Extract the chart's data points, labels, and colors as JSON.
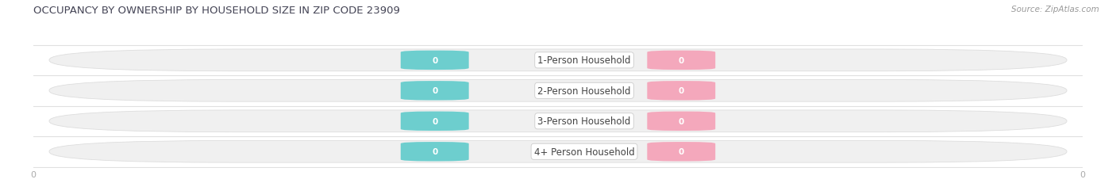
{
  "title": "OCCUPANCY BY OWNERSHIP BY HOUSEHOLD SIZE IN ZIP CODE 23909",
  "source": "Source: ZipAtlas.com",
  "categories": [
    "1-Person Household",
    "2-Person Household",
    "3-Person Household",
    "4+ Person Household"
  ],
  "owner_values": [
    0,
    0,
    0,
    0
  ],
  "renter_values": [
    0,
    0,
    0,
    0
  ],
  "owner_color": "#6DCECE",
  "renter_color": "#F4A8BC",
  "bar_bg_color": "#F0F0F0",
  "bar_bg_edge_color": "#DDDDDD",
  "row_separator_color": "#E0E0E0",
  "label_color": "#444444",
  "title_color": "#444455",
  "source_color": "#999999",
  "axis_value_color": "#AAAAAA",
  "background_color": "#FFFFFF",
  "figsize": [
    14.06,
    2.32
  ],
  "dpi": 100
}
